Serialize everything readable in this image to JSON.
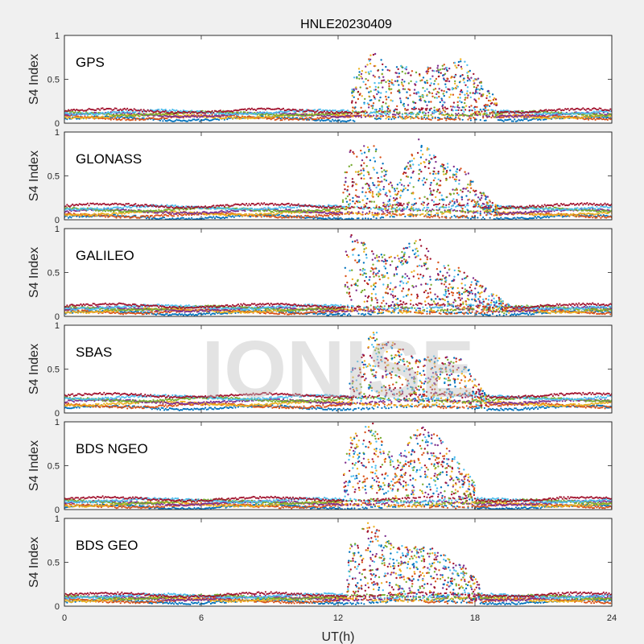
{
  "chart_data": {
    "type": "scatter",
    "title": "HNLE20230409",
    "xlabel": "UT(h)",
    "ylabel": "S4 Index",
    "xlim": [
      0,
      24
    ],
    "ylim": [
      0,
      1
    ],
    "xticks": [
      0,
      6,
      12,
      18,
      24
    ],
    "yticks": [
      0,
      0.5,
      1
    ],
    "ytick_labels": [
      "0",
      "0.5",
      "1"
    ],
    "watermark": "IONISE",
    "series_colors": [
      "#0072bd",
      "#d95319",
      "#edb120",
      "#7e2f8e",
      "#77ac30",
      "#4dbeee",
      "#a2142f"
    ],
    "panels": [
      {
        "name": "GPS",
        "quiet_level": [
          0.05,
          0.14
        ],
        "active_window": [
          12.6,
          19.0
        ],
        "profile": [
          {
            "x": 0,
            "y": 0.08
          },
          {
            "x": 6,
            "y": 0.09
          },
          {
            "x": 12,
            "y": 0.07
          },
          {
            "x": 12.8,
            "y": 0.45
          },
          {
            "x": 13.5,
            "y": 0.6
          },
          {
            "x": 14.5,
            "y": 0.5
          },
          {
            "x": 15.5,
            "y": 0.45
          },
          {
            "x": 16.5,
            "y": 0.5
          },
          {
            "x": 17.5,
            "y": 0.55
          },
          {
            "x": 18.5,
            "y": 0.3
          },
          {
            "x": 19.5,
            "y": 0.1
          },
          {
            "x": 24,
            "y": 0.08
          }
        ]
      },
      {
        "name": "GLONASS",
        "quiet_level": [
          0.03,
          0.16
        ],
        "active_window": [
          12.2,
          19.0
        ],
        "profile": [
          {
            "x": 0,
            "y": 0.1
          },
          {
            "x": 4.5,
            "y": 0.18
          },
          {
            "x": 8,
            "y": 0.15
          },
          {
            "x": 12,
            "y": 0.1
          },
          {
            "x": 12.5,
            "y": 0.6
          },
          {
            "x": 13.5,
            "y": 0.7
          },
          {
            "x": 14.5,
            "y": 0.25
          },
          {
            "x": 15.5,
            "y": 0.7
          },
          {
            "x": 16.5,
            "y": 0.5
          },
          {
            "x": 17.5,
            "y": 0.45
          },
          {
            "x": 18.5,
            "y": 0.2
          },
          {
            "x": 19.5,
            "y": 0.1
          },
          {
            "x": 22.5,
            "y": 0.15
          },
          {
            "x": 24,
            "y": 0.05
          }
        ]
      },
      {
        "name": "GALILEO",
        "quiet_level": [
          0.04,
          0.12
        ],
        "active_window": [
          12.3,
          19.5
        ],
        "profile": [
          {
            "x": 0,
            "y": 0.08
          },
          {
            "x": 6,
            "y": 0.1
          },
          {
            "x": 12,
            "y": 0.1
          },
          {
            "x": 12.5,
            "y": 0.75
          },
          {
            "x": 13.5,
            "y": 0.55
          },
          {
            "x": 14.5,
            "y": 0.5
          },
          {
            "x": 15.5,
            "y": 0.7
          },
          {
            "x": 16.5,
            "y": 0.45
          },
          {
            "x": 17.5,
            "y": 0.4
          },
          {
            "x": 18.5,
            "y": 0.25
          },
          {
            "x": 19.5,
            "y": 0.1
          },
          {
            "x": 24,
            "y": 0.06
          }
        ]
      },
      {
        "name": "SBAS",
        "quiet_level": [
          0.06,
          0.2
        ],
        "active_window": [
          12.5,
          18.5
        ],
        "profile": [
          {
            "x": 0,
            "y": 0.12
          },
          {
            "x": 12,
            "y": 0.12
          },
          {
            "x": 12.7,
            "y": 0.4
          },
          {
            "x": 13.5,
            "y": 0.7
          },
          {
            "x": 14.5,
            "y": 0.6
          },
          {
            "x": 15.5,
            "y": 0.45
          },
          {
            "x": 16.5,
            "y": 0.5
          },
          {
            "x": 17.5,
            "y": 0.45
          },
          {
            "x": 18.5,
            "y": 0.15
          },
          {
            "x": 24,
            "y": 0.1
          }
        ]
      },
      {
        "name": "BDS NGEO",
        "quiet_level": [
          0.03,
          0.12
        ],
        "active_window": [
          12.2,
          18.0
        ],
        "profile": [
          {
            "x": 0,
            "y": 0.06
          },
          {
            "x": 4.5,
            "y": 0.1
          },
          {
            "x": 12,
            "y": 0.07
          },
          {
            "x": 12.5,
            "y": 0.6
          },
          {
            "x": 13.5,
            "y": 0.75
          },
          {
            "x": 14.5,
            "y": 0.4
          },
          {
            "x": 15.5,
            "y": 0.75
          },
          {
            "x": 16.5,
            "y": 0.6
          },
          {
            "x": 17.5,
            "y": 0.35
          },
          {
            "x": 18.5,
            "y": 0.1
          },
          {
            "x": 24,
            "y": 0.05
          }
        ]
      },
      {
        "name": "BDS GEO",
        "quiet_level": [
          0.05,
          0.13
        ],
        "active_window": [
          12.4,
          18.2
        ],
        "profile": [
          {
            "x": 0,
            "y": 0.1
          },
          {
            "x": 12,
            "y": 0.1
          },
          {
            "x": 12.6,
            "y": 0.55
          },
          {
            "x": 13.5,
            "y": 0.75
          },
          {
            "x": 14.5,
            "y": 0.5
          },
          {
            "x": 15.5,
            "y": 0.55
          },
          {
            "x": 16.5,
            "y": 0.45
          },
          {
            "x": 17.5,
            "y": 0.35
          },
          {
            "x": 18.5,
            "y": 0.12
          },
          {
            "x": 24,
            "y": 0.08
          }
        ]
      }
    ]
  }
}
